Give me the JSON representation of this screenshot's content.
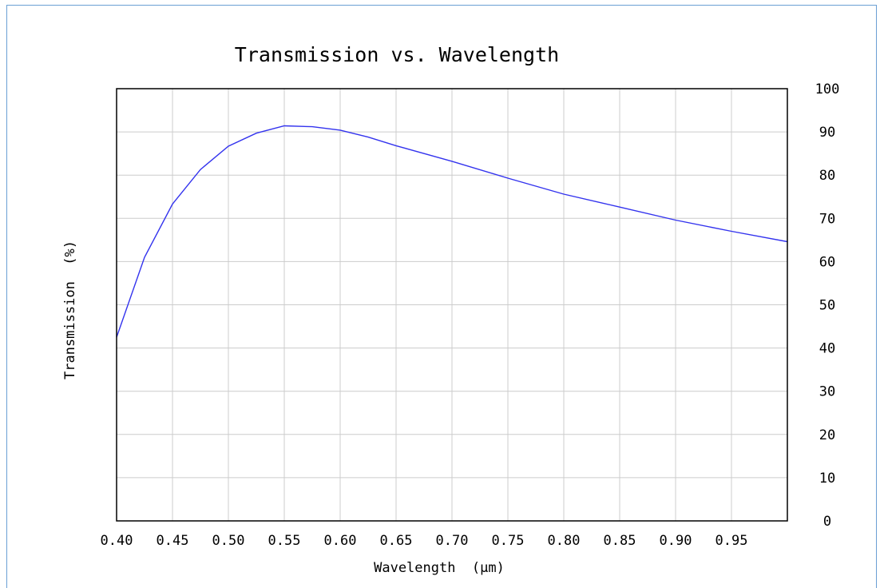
{
  "chart_data": {
    "type": "line",
    "title": "Transmission vs. Wavelength",
    "xlabel": "Wavelength  (μm)",
    "ylabel": "Transmission  (%)",
    "xlim": [
      0.4,
      1.0
    ],
    "ylim": [
      0,
      100
    ],
    "x_ticks": [
      "0.40",
      "0.45",
      "0.50",
      "0.55",
      "0.60",
      "0.65",
      "0.70",
      "0.75",
      "0.80",
      "0.85",
      "0.90",
      "0.95"
    ],
    "y_ticks": [
      "0",
      "10",
      "20",
      "30",
      "40",
      "50",
      "60",
      "70",
      "80",
      "90",
      "100"
    ],
    "y_axis_side": "right",
    "grid": true,
    "line_color": "#3333ee",
    "series": [
      {
        "x": [
          0.4,
          0.425,
          0.45,
          0.475,
          0.5,
          0.525,
          0.55,
          0.575,
          0.6,
          0.625,
          0.65,
          0.7,
          0.75,
          0.8,
          0.85,
          0.9,
          0.95,
          1.0
        ],
        "y": [
          42.5,
          61.0,
          73.3,
          81.3,
          86.7,
          89.7,
          91.4,
          91.2,
          90.4,
          88.8,
          86.8,
          83.2,
          79.3,
          75.6,
          72.6,
          69.6,
          67.0,
          64.6
        ]
      }
    ]
  }
}
